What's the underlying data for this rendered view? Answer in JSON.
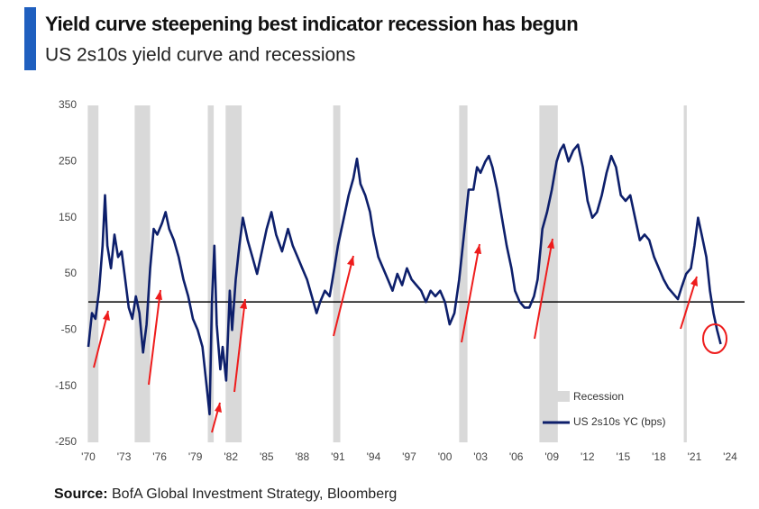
{
  "chart_data": {
    "type": "line",
    "title": "Yield curve steepening best indicator recession has begun",
    "subtitle": "US 2s10s yield curve and recessions",
    "source_label": "Source:",
    "source": "BofA Global Investment Strategy, Bloomberg",
    "recession_label": "Recession",
    "recession_color": "#d9d9d9",
    "recessions": [
      [
        1969.95,
        1970.85
      ],
      [
        1973.9,
        1975.2
      ],
      [
        1980.05,
        1980.55
      ],
      [
        1981.55,
        1982.9
      ],
      [
        1990.6,
        1991.2
      ],
      [
        2001.2,
        2001.9
      ],
      [
        2007.95,
        2009.5
      ],
      [
        2020.1,
        2020.35
      ]
    ],
    "reference_line": 0,
    "xlim": [
      1970,
      2024
    ],
    "xticks": [
      {
        "value": 1970,
        "label": "'70"
      },
      {
        "value": 1973,
        "label": "'73"
      },
      {
        "value": 1976,
        "label": "'76"
      },
      {
        "value": 1979,
        "label": "'79"
      },
      {
        "value": 1982,
        "label": "'82"
      },
      {
        "value": 1985,
        "label": "'85"
      },
      {
        "value": 1988,
        "label": "'88"
      },
      {
        "value": 1991,
        "label": "'91"
      },
      {
        "value": 1994,
        "label": "'94"
      },
      {
        "value": 1997,
        "label": "'97"
      },
      {
        "value": 2000,
        "label": "'00"
      },
      {
        "value": 2003,
        "label": "'03"
      },
      {
        "value": 2006,
        "label": "'06"
      },
      {
        "value": 2009,
        "label": "'09"
      },
      {
        "value": 2012,
        "label": "'12"
      },
      {
        "value": 2015,
        "label": "'15"
      },
      {
        "value": 2018,
        "label": "'18"
      },
      {
        "value": 2021,
        "label": "'21"
      },
      {
        "value": 2024,
        "label": "'24"
      }
    ],
    "ylim": [
      -250,
      350
    ],
    "yticks": [
      -250,
      -150,
      -50,
      50,
      150,
      250,
      350
    ],
    "grid": false,
    "x": [
      1970.0,
      1970.3,
      1970.6,
      1970.9,
      1971.2,
      1971.4,
      1971.6,
      1971.9,
      1972.2,
      1972.5,
      1972.8,
      1973.1,
      1973.4,
      1973.7,
      1974.0,
      1974.3,
      1974.6,
      1974.9,
      1975.2,
      1975.5,
      1975.8,
      1976.2,
      1976.5,
      1976.8,
      1977.2,
      1977.6,
      1978.0,
      1978.4,
      1978.8,
      1979.2,
      1979.6,
      1980.0,
      1980.2,
      1980.4,
      1980.6,
      1980.8,
      1981.1,
      1981.3,
      1981.6,
      1981.9,
      1982.1,
      1982.4,
      1982.7,
      1983.0,
      1983.4,
      1983.8,
      1984.2,
      1984.6,
      1985.0,
      1985.4,
      1985.8,
      1986.3,
      1986.8,
      1987.2,
      1987.6,
      1988.0,
      1988.4,
      1988.8,
      1989.2,
      1989.5,
      1989.9,
      1990.3,
      1990.7,
      1991.0,
      1991.5,
      1991.9,
      1992.3,
      1992.6,
      1992.9,
      1993.3,
      1993.7,
      1994.0,
      1994.4,
      1994.8,
      1995.2,
      1995.6,
      1996.0,
      1996.4,
      1996.8,
      1997.2,
      1997.6,
      1998.0,
      1998.4,
      1998.8,
      1999.2,
      1999.6,
      2000.0,
      2000.4,
      2000.8,
      2001.2,
      2001.6,
      2002.0,
      2002.4,
      2002.7,
      2003.0,
      2003.4,
      2003.7,
      2004.0,
      2004.4,
      2004.8,
      2005.2,
      2005.6,
      2005.9,
      2006.3,
      2006.7,
      2007.1,
      2007.5,
      2007.8,
      2008.2,
      2008.6,
      2009.0,
      2009.4,
      2009.7,
      2010.0,
      2010.4,
      2010.8,
      2011.2,
      2011.6,
      2012.0,
      2012.4,
      2012.8,
      2013.2,
      2013.6,
      2014.0,
      2014.4,
      2014.8,
      2015.2,
      2015.6,
      2016.0,
      2016.4,
      2016.8,
      2017.2,
      2017.6,
      2018.0,
      2018.4,
      2018.8,
      2019.2,
      2019.6,
      2019.9,
      2020.3,
      2020.7,
      2021.0,
      2021.3,
      2021.6,
      2022.0,
      2022.3,
      2022.6,
      2022.9,
      2023.2
    ],
    "series": [
      {
        "name": "US 2s10s YC (bps)",
        "color": "#0d1f6b",
        "values": [
          -80,
          -20,
          -30,
          20,
          100,
          190,
          100,
          60,
          120,
          80,
          90,
          40,
          -10,
          -30,
          10,
          -20,
          -90,
          -40,
          60,
          130,
          120,
          140,
          160,
          130,
          110,
          80,
          40,
          10,
          -30,
          -50,
          -80,
          -160,
          -200,
          0,
          100,
          -40,
          -120,
          -80,
          -140,
          20,
          -50,
          40,
          100,
          150,
          110,
          80,
          50,
          90,
          130,
          160,
          120,
          90,
          130,
          100,
          80,
          60,
          40,
          10,
          -20,
          0,
          20,
          10,
          60,
          100,
          150,
          190,
          220,
          255,
          210,
          190,
          160,
          120,
          80,
          60,
          40,
          20,
          50,
          30,
          60,
          40,
          30,
          20,
          0,
          20,
          10,
          20,
          0,
          -40,
          -20,
          40,
          120,
          200,
          200,
          240,
          230,
          250,
          260,
          240,
          200,
          150,
          100,
          60,
          20,
          0,
          -10,
          -10,
          10,
          40,
          130,
          160,
          200,
          250,
          270,
          280,
          250,
          270,
          280,
          240,
          180,
          150,
          160,
          190,
          230,
          260,
          240,
          190,
          180,
          190,
          150,
          110,
          120,
          110,
          80,
          60,
          40,
          25,
          15,
          5,
          25,
          50,
          60,
          100,
          150,
          120,
          80,
          20,
          -20,
          -50,
          -75
        ]
      }
    ]
  }
}
